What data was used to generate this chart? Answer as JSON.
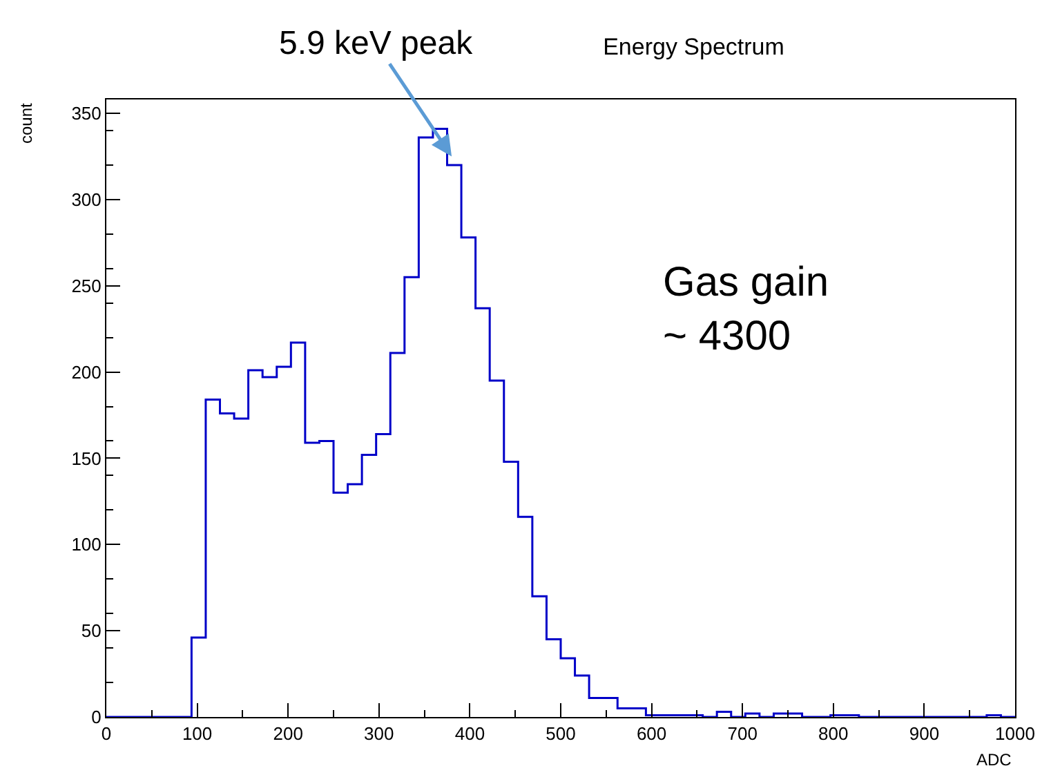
{
  "chart_data": {
    "type": "histogram",
    "title": "Energy Spectrum",
    "xlabel": "ADC",
    "ylabel": "count",
    "bins": [
      0,
      15.625,
      31.25,
      46.875,
      62.5,
      78.125,
      93.75,
      109.375,
      125,
      140.625,
      156.25,
      171.875,
      187.5,
      203.125,
      218.75,
      234.375,
      250,
      265.625,
      281.25,
      296.875,
      312.5,
      328.125,
      343.75,
      359.375,
      375,
      390.625,
      406.25,
      421.875,
      437.5,
      453.125,
      468.75,
      484.375,
      500,
      515.625,
      531.25,
      546.875,
      562.5,
      578.125,
      593.75,
      609.375,
      625,
      640.625,
      656.25,
      671.875,
      687.5,
      703.125,
      718.75,
      734.375,
      750,
      765.625,
      781.25,
      796.875,
      812.5,
      828.125,
      843.75,
      859.375,
      875,
      890.625,
      906.25,
      921.875,
      937.5,
      953.125,
      968.75,
      984.375,
      1000
    ],
    "values": [
      0,
      0,
      0,
      0,
      0,
      0,
      46,
      184,
      176,
      173,
      201,
      197,
      203,
      217,
      159,
      160,
      130,
      135,
      152,
      164,
      211,
      255,
      336,
      341,
      320,
      278,
      237,
      195,
      148,
      116,
      70,
      45,
      34,
      24,
      11,
      11,
      5,
      5,
      1,
      1,
      1,
      1,
      0,
      3,
      0,
      2,
      0,
      2,
      2,
      0,
      0,
      1,
      1,
      0,
      0,
      0,
      0,
      0,
      0,
      0,
      0,
      0,
      1,
      0
    ],
    "color": "#0000c8",
    "xlim": [
      0,
      1000
    ],
    "ylim": [
      0,
      358
    ],
    "xticks": [
      0,
      100,
      200,
      300,
      400,
      500,
      600,
      700,
      800,
      900,
      1000
    ],
    "yticks": [
      0,
      50,
      100,
      150,
      200,
      250,
      300,
      350
    ],
    "annotations": [
      {
        "text": "5.9 keV peak",
        "x": 380,
        "y": 325
      },
      "Gas gain\n~ 4300"
    ]
  }
}
